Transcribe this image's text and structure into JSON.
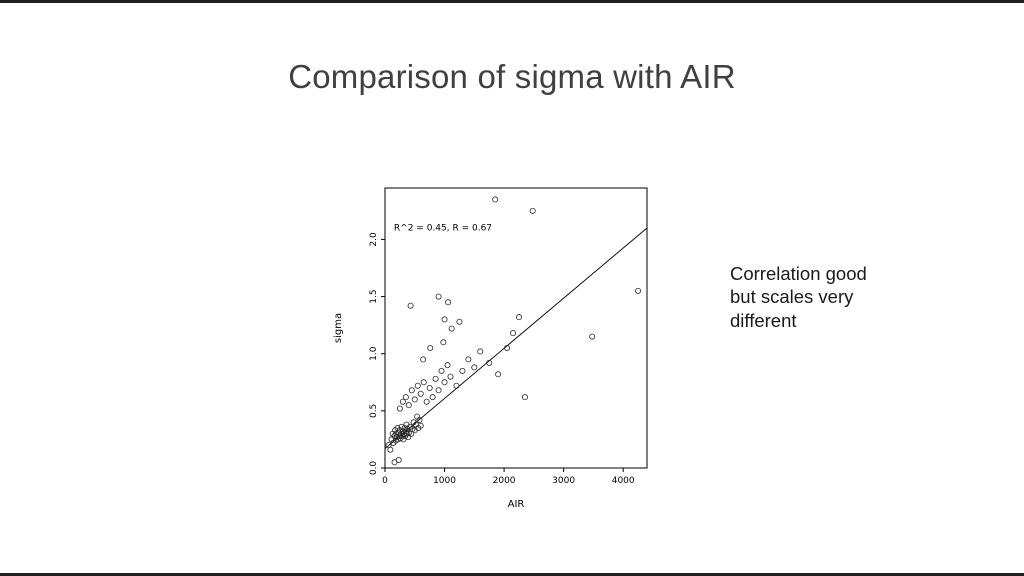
{
  "slide": {
    "title": "Comparison of sigma with AIR",
    "side_note": "Correlation good but scales very different"
  },
  "chart_data": {
    "type": "scatter",
    "title": "",
    "xlabel": "AIR",
    "ylabel": "sigma",
    "xlim": [
      0,
      4400
    ],
    "ylim": [
      0,
      2.45
    ],
    "xticks": [
      0,
      1000,
      2000,
      3000,
      4000
    ],
    "yticks": [
      0.0,
      0.5,
      1.0,
      1.5,
      2.0
    ],
    "grid": false,
    "annotation": {
      "text": "R^2 = 0.45, R = 0.67",
      "x": 150,
      "y": 2.08
    },
    "regression_line": {
      "x1": 0,
      "y1": 0.17,
      "x2": 4400,
      "y2": 2.1
    },
    "points": [
      [
        60,
        0.2
      ],
      [
        90,
        0.16
      ],
      [
        110,
        0.25
      ],
      [
        130,
        0.3
      ],
      [
        140,
        0.22
      ],
      [
        160,
        0.28
      ],
      [
        170,
        0.33
      ],
      [
        180,
        0.24
      ],
      [
        190,
        0.3
      ],
      [
        200,
        0.27
      ],
      [
        210,
        0.35
      ],
      [
        220,
        0.25
      ],
      [
        230,
        0.31
      ],
      [
        240,
        0.28
      ],
      [
        250,
        0.33
      ],
      [
        260,
        0.26
      ],
      [
        270,
        0.3
      ],
      [
        280,
        0.36
      ],
      [
        290,
        0.28
      ],
      [
        300,
        0.32
      ],
      [
        310,
        0.25
      ],
      [
        320,
        0.3
      ],
      [
        330,
        0.35
      ],
      [
        340,
        0.28
      ],
      [
        350,
        0.32
      ],
      [
        360,
        0.38
      ],
      [
        370,
        0.3
      ],
      [
        380,
        0.34
      ],
      [
        390,
        0.27
      ],
      [
        400,
        0.31
      ],
      [
        420,
        0.36
      ],
      [
        440,
        0.3
      ],
      [
        460,
        0.34
      ],
      [
        480,
        0.4
      ],
      [
        500,
        0.33
      ],
      [
        520,
        0.38
      ],
      [
        540,
        0.45
      ],
      [
        560,
        0.35
      ],
      [
        580,
        0.42
      ],
      [
        600,
        0.37
      ],
      [
        160,
        0.05
      ],
      [
        230,
        0.07
      ],
      [
        250,
        0.52
      ],
      [
        300,
        0.58
      ],
      [
        350,
        0.62
      ],
      [
        400,
        0.55
      ],
      [
        450,
        0.68
      ],
      [
        500,
        0.6
      ],
      [
        550,
        0.72
      ],
      [
        600,
        0.65
      ],
      [
        650,
        0.75
      ],
      [
        700,
        0.58
      ],
      [
        750,
        0.7
      ],
      [
        800,
        0.62
      ],
      [
        850,
        0.78
      ],
      [
        900,
        0.68
      ],
      [
        950,
        0.85
      ],
      [
        1000,
        0.75
      ],
      [
        1050,
        0.9
      ],
      [
        1100,
        0.8
      ],
      [
        1200,
        0.72
      ],
      [
        1300,
        0.85
      ],
      [
        1400,
        0.95
      ],
      [
        1500,
        0.88
      ],
      [
        430,
        1.42
      ],
      [
        900,
        1.5
      ],
      [
        1000,
        1.3
      ],
      [
        1060,
        1.45
      ],
      [
        1120,
        1.22
      ],
      [
        980,
        1.1
      ],
      [
        760,
        1.05
      ],
      [
        640,
        0.95
      ],
      [
        1250,
        1.28
      ],
      [
        2050,
        1.05
      ],
      [
        2150,
        1.18
      ],
      [
        2250,
        1.32
      ],
      [
        1600,
        1.02
      ],
      [
        1750,
        0.92
      ],
      [
        1900,
        0.82
      ],
      [
        2350,
        0.62
      ],
      [
        1850,
        2.35
      ],
      [
        2480,
        2.25
      ],
      [
        4250,
        1.55
      ],
      [
        3480,
        1.15
      ]
    ]
  }
}
